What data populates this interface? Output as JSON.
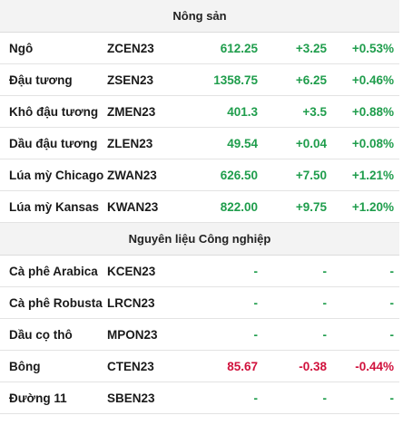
{
  "colors": {
    "up": "#1f9d4c",
    "down": "#d0113c",
    "header_bg": "#f3f3f3"
  },
  "sections": [
    {
      "title": "Nông sản",
      "rows": [
        {
          "name": "Ngô",
          "code": "ZCEN23",
          "price": "612.25",
          "change": "+3.25",
          "percent": "+0.53%",
          "trend": "up"
        },
        {
          "name": "Đậu tương",
          "code": "ZSEN23",
          "price": "1358.75",
          "change": "+6.25",
          "percent": "+0.46%",
          "trend": "up"
        },
        {
          "name": "Khô đậu tương",
          "code": "ZMEN23",
          "price": "401.3",
          "change": "+3.5",
          "percent": "+0.88%",
          "trend": "up"
        },
        {
          "name": "Dầu đậu tương",
          "code": "ZLEN23",
          "price": "49.54",
          "change": "+0.04",
          "percent": "+0.08%",
          "trend": "up"
        },
        {
          "name": "Lúa mỳ Chicago",
          "code": "ZWAN23",
          "price": "626.50",
          "change": "+7.50",
          "percent": "+1.21%",
          "trend": "up"
        },
        {
          "name": "Lúa mỳ Kansas",
          "code": "KWAN23",
          "price": "822.00",
          "change": "+9.75",
          "percent": "+1.20%",
          "trend": "up"
        }
      ]
    },
    {
      "title": "Nguyên liệu Công nghiệp",
      "rows": [
        {
          "name": "Cà phê Arabica",
          "code": "KCEN23",
          "price": "-",
          "change": "-",
          "percent": "-",
          "trend": "nil"
        },
        {
          "name": "Cà phê Robusta",
          "code": "LRCN23",
          "price": "-",
          "change": "-",
          "percent": "-",
          "trend": "nil"
        },
        {
          "name": "Dầu cọ thô",
          "code": "MPON23",
          "price": "-",
          "change": "-",
          "percent": "-",
          "trend": "nil"
        },
        {
          "name": "Bông",
          "code": "CTEN23",
          "price": "85.67",
          "change": "-0.38",
          "percent": "-0.44%",
          "trend": "down"
        },
        {
          "name": "Đường 11",
          "code": "SBEN23",
          "price": "-",
          "change": "-",
          "percent": "-",
          "trend": "nil"
        }
      ]
    }
  ]
}
